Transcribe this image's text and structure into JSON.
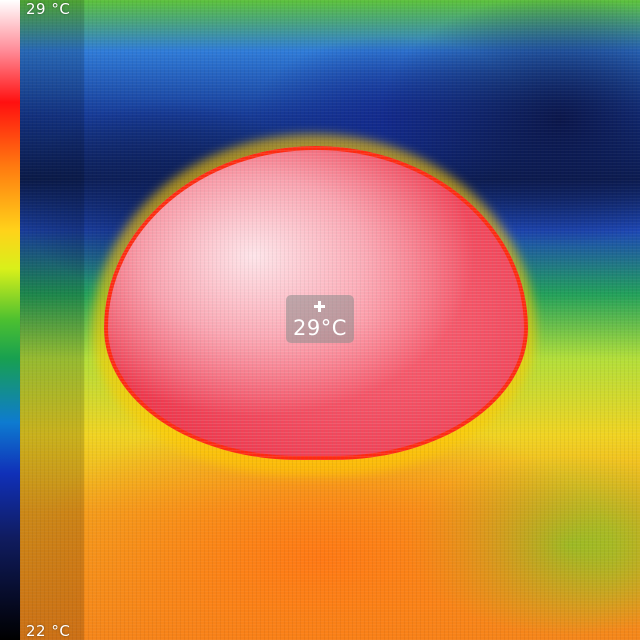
{
  "scale": {
    "max_label": "29 °C",
    "min_label": "22 °C",
    "gradient_colors": [
      "#ffffff",
      "#ff1010",
      "#ffd21a",
      "#4cc030",
      "#0e7bd0",
      "#101c60",
      "#000000"
    ]
  },
  "spot": {
    "value": "29°C",
    "icon": "crosshair-icon"
  }
}
